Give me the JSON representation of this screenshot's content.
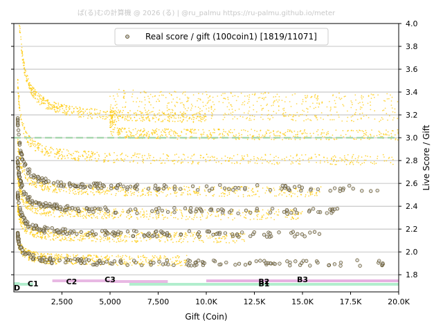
{
  "watermark": "ぱ(る)むの計算機 @ 2026 (る) | @ru_palmu  https://ru-palmu.github.io/meter",
  "chart_data": {
    "type": "scatter",
    "xlabel": "Gift (Coin)",
    "ylabel": "Live Score / Gift",
    "xlim": [
      0,
      20000
    ],
    "ylim": [
      1.65,
      4.0
    ],
    "x_ticks": [
      2500,
      5000,
      7500,
      10000,
      12500,
      15000,
      17500,
      20000
    ],
    "x_tick_labels": [
      "2,500",
      "5,000",
      "7,500",
      "10.0K",
      "12.5K",
      "15.0K",
      "17.5K",
      "20.0K"
    ],
    "y_ticks": [
      1.8,
      2.0,
      2.2,
      2.4,
      2.6,
      2.8,
      3.0,
      3.2,
      3.4,
      3.6,
      3.8,
      4.0
    ],
    "y_tick_labels": [
      "1.8",
      "2.0",
      "2.2",
      "2.4",
      "2.6",
      "2.8",
      "3.0",
      "3.2",
      "3.4",
      "3.6",
      "3.8",
      "4.0"
    ],
    "grid": "horizontal",
    "reference_line": {
      "y": 3.0,
      "style": "dashed",
      "color": "#a8d8b0"
    },
    "legend": {
      "label": "Real score / gift (100coin1) [1819/11071]",
      "placement": "top-center"
    },
    "colors": {
      "gold": "#ffc800",
      "dark": "#5a4a1a",
      "band_pink": "#e6b0e0",
      "band_green": "#a8ecc8"
    },
    "series": [
      {
        "name": "Real score / gift (100coin1) [1819/11071]",
        "style": "gold",
        "curves": [
          {
            "a": 250,
            "base": 3.15,
            "x_range": [
              200,
              10000
            ]
          },
          {
            "a": 110,
            "base": 3.02,
            "x_range": [
              5000,
              20000
            ],
            "jump": 0.2
          },
          {
            "a": 140,
            "base": 2.8,
            "x_range": [
              200,
              20000
            ]
          },
          {
            "a": 90,
            "base": 2.52,
            "x_range": [
              200,
              16000
            ]
          },
          {
            "a": 70,
            "base": 2.32,
            "x_range": [
              200,
              15000
            ]
          },
          {
            "a": 55,
            "base": 2.12,
            "x_range": [
              200,
              12000
            ]
          },
          {
            "a": 40,
            "base": 1.92,
            "x_range": [
              200,
              9000
            ]
          }
        ]
      },
      {
        "name": "",
        "style": "dark",
        "curves": [
          {
            "a": 120,
            "base": 2.55,
            "x_range": [
              200,
              19000
            ]
          },
          {
            "a": 90,
            "base": 2.35,
            "x_range": [
              200,
              17000
            ]
          },
          {
            "a": 70,
            "base": 2.15,
            "x_range": [
              200,
              16000
            ]
          },
          {
            "a": 50,
            "base": 1.9,
            "x_range": [
              200,
              19500
            ]
          }
        ]
      }
    ],
    "bands": [
      {
        "label": "D",
        "x": [
          0,
          300
        ],
        "color": "band_green",
        "label_x": 0
      },
      {
        "label": "C1",
        "x": [
          300,
          1000
        ],
        "color": "band_green",
        "label_x": 1000
      },
      {
        "label": "C2",
        "x": [
          2000,
          5000
        ],
        "color": "band_pink",
        "label_x": 3000
      },
      {
        "label": "C3",
        "x": [
          5000,
          8000
        ],
        "color": "band_pink",
        "label_x": 5000
      },
      {
        "label": "B2",
        "x": [
          10000,
          20000
        ],
        "color": "band_pink",
        "label_x": 13000
      },
      {
        "label": "B1",
        "x": [
          6000,
          20000
        ],
        "color": "band_green",
        "label_x": 13000
      },
      {
        "label": "B3",
        "x": [
          10000,
          20000
        ],
        "color": "band_pink",
        "label_x": 15000
      }
    ]
  }
}
